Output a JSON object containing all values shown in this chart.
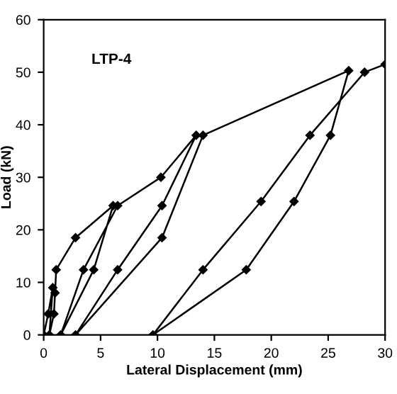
{
  "chart_data": {
    "type": "line",
    "title": "LTP-4",
    "xlabel": "Lateral Displacement (mm)",
    "ylabel": "Load (kN)",
    "series": [
      {
        "color": "#000000",
        "marker": "diamond",
        "line_style": "solid",
        "x": [
          0,
          0.4,
          0.8,
          0.5,
          0.9,
          1.0,
          1.1,
          2.8,
          6.1,
          4.4,
          1.5,
          3.5,
          6.5,
          10.3,
          13.4,
          10.4,
          6.5,
          2.8,
          10.4,
          14.0,
          26.8,
          25.2,
          22.0,
          17.8,
          9.6,
          14.0,
          19.1,
          23.4,
          28.2,
          30
        ],
        "values": [
          0,
          4,
          9,
          0,
          4,
          8,
          12.4,
          18.5,
          24.6,
          12.4,
          0,
          12.4,
          24.6,
          30,
          38,
          24.6,
          12.4,
          0,
          18.5,
          38,
          50.3,
          38,
          25.4,
          12.4,
          0,
          12.4,
          25.4,
          38,
          50,
          51.5
        ]
      }
    ],
    "xlim": [
      0,
      30
    ],
    "xticks": [
      0,
      5,
      10,
      15,
      20,
      25,
      30
    ],
    "ylim": [
      0,
      60
    ],
    "yticks": [
      0,
      10,
      20,
      30,
      40,
      50,
      60
    ],
    "grid": false,
    "legend": false
  }
}
